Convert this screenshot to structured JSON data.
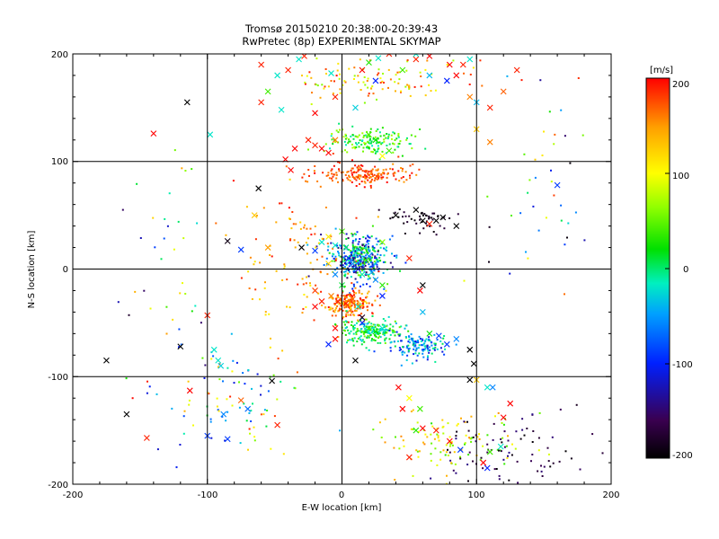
{
  "chart_data": {
    "type": "scatter",
    "title": "Tromsø 20150210 20:38:00-20:39:43",
    "subtitle": "RwPretec (8p) EXPERIMENTAL SKYMAP",
    "xlabel": "E-W location [km]",
    "ylabel": "N-S location [km]",
    "xlim": [
      -200,
      200
    ],
    "ylim": [
      -200,
      200
    ],
    "x_ticks": [
      "-200",
      "-100",
      "0",
      "100",
      "200"
    ],
    "y_ticks": [
      "-200",
      "-100",
      "0",
      "100",
      "200"
    ],
    "grid": true,
    "colorbar": {
      "label": "[m/s]",
      "range": [
        -200,
        200
      ],
      "ticks": [
        "200",
        "100",
        "0",
        "-100",
        "-200"
      ]
    },
    "series": [
      {
        "marker": "x",
        "points": [
          [
            -115,
            155
          ],
          [
            -98,
            125
          ],
          [
            -140,
            126
          ],
          [
            -65,
            50
          ],
          [
            -85,
            26
          ],
          [
            -75,
            18
          ],
          [
            -55,
            20
          ],
          [
            -120,
            -72
          ],
          [
            -175,
            -85
          ],
          [
            -95,
            -75
          ],
          [
            -92,
            -85
          ],
          [
            -90,
            -90
          ],
          [
            -100,
            -43
          ],
          [
            -113,
            -113
          ],
          [
            -100,
            -155
          ],
          [
            -88,
            -135
          ],
          [
            -85,
            -158
          ],
          [
            -75,
            -122
          ],
          [
            -70,
            -130
          ],
          [
            -52,
            -104
          ],
          [
            -48,
            -145
          ],
          [
            -145,
            -157
          ],
          [
            -30,
            20
          ],
          [
            -20,
            17
          ],
          [
            -15,
            25
          ],
          [
            -10,
            30
          ],
          [
            -5,
            22
          ],
          [
            0,
            35
          ],
          [
            3,
            20
          ],
          [
            5,
            10
          ],
          [
            8,
            5
          ],
          [
            10,
            15
          ],
          [
            12,
            0
          ],
          [
            15,
            -5
          ],
          [
            18,
            8
          ],
          [
            20,
            12
          ],
          [
            22,
            -3
          ],
          [
            25,
            -10
          ],
          [
            -10,
            5
          ],
          [
            -5,
            -5
          ],
          [
            0,
            -15
          ],
          [
            -8,
            -25
          ],
          [
            -3,
            -30
          ],
          [
            3,
            -32
          ],
          [
            8,
            -28
          ],
          [
            12,
            -35
          ],
          [
            15,
            -50
          ],
          [
            20,
            -55
          ],
          [
            25,
            -58
          ],
          [
            30,
            -55
          ],
          [
            15,
            -45
          ],
          [
            -5,
            -55
          ],
          [
            -5,
            -65
          ],
          [
            -10,
            -70
          ],
          [
            10,
            -85
          ],
          [
            -20,
            -20
          ],
          [
            -15,
            -30
          ],
          [
            -20,
            -35
          ],
          [
            30,
            25
          ],
          [
            -25,
            120
          ],
          [
            -20,
            115
          ],
          [
            -10,
            108
          ],
          [
            -15,
            112
          ],
          [
            -5,
            120
          ],
          [
            20,
            125
          ],
          [
            25,
            120
          ],
          [
            30,
            105
          ],
          [
            35,
            110
          ],
          [
            -35,
            112
          ],
          [
            -42,
            102
          ],
          [
            -38,
            92
          ],
          [
            10,
            150
          ],
          [
            25,
            175
          ],
          [
            45,
            185
          ],
          [
            65,
            180
          ],
          [
            78,
            175
          ],
          [
            85,
            180
          ],
          [
            90,
            190
          ],
          [
            -40,
            185
          ],
          [
            -55,
            165
          ],
          [
            -60,
            155
          ],
          [
            -45,
            148
          ],
          [
            -20,
            145
          ],
          [
            -5,
            160
          ],
          [
            -8,
            182
          ],
          [
            15,
            185
          ],
          [
            20,
            192
          ],
          [
            27,
            196
          ],
          [
            35,
            200
          ],
          [
            55,
            195
          ],
          [
            55,
            200
          ],
          [
            65,
            198
          ],
          [
            80,
            190
          ],
          [
            95,
            195
          ],
          [
            -62,
            75
          ],
          [
            -32,
            195
          ],
          [
            -28,
            198
          ],
          [
            40,
            50
          ],
          [
            55,
            55
          ],
          [
            60,
            45
          ],
          [
            65,
            42
          ],
          [
            70,
            45
          ],
          [
            75,
            48
          ],
          [
            85,
            40
          ],
          [
            50,
            10
          ],
          [
            60,
            -15
          ],
          [
            58,
            -20
          ],
          [
            60,
            -40
          ],
          [
            65,
            -60
          ],
          [
            72,
            -62
          ],
          [
            78,
            -70
          ],
          [
            85,
            -65
          ],
          [
            95,
            -75
          ],
          [
            98,
            -88
          ],
          [
            95,
            -103
          ],
          [
            100,
            -103
          ],
          [
            108,
            -110
          ],
          [
            112,
            -110
          ],
          [
            125,
            -125
          ],
          [
            120,
            -138
          ],
          [
            42,
            -110
          ],
          [
            50,
            -120
          ],
          [
            58,
            -130
          ],
          [
            45,
            -130
          ],
          [
            55,
            -150
          ],
          [
            60,
            -148
          ],
          [
            70,
            -150
          ],
          [
            80,
            -160
          ],
          [
            88,
            -168
          ],
          [
            110,
            -170
          ],
          [
            108,
            -185
          ],
          [
            105,
            -180
          ],
          [
            50,
            -175
          ],
          [
            30,
            -25
          ],
          [
            30,
            -15
          ],
          [
            -48,
            180
          ],
          [
            -60,
            190
          ],
          [
            130,
            185
          ],
          [
            120,
            165
          ],
          [
            110,
            150
          ],
          [
            100,
            155
          ],
          [
            95,
            160
          ],
          [
            100,
            130
          ],
          [
            110,
            118
          ],
          [
            160,
            78
          ],
          [
            118,
            -165
          ],
          [
            -160,
            -135
          ]
        ],
        "values": [
          -200,
          -20,
          200,
          130,
          -190,
          -90,
          150,
          -200,
          -200,
          -20,
          -20,
          -30,
          190,
          200,
          -90,
          -60,
          -90,
          170,
          -70,
          -200,
          190,
          190,
          -200,
          -90,
          -20,
          110,
          -20,
          40,
          0,
          -100,
          -60,
          -30,
          -110,
          -10,
          30,
          -60,
          -40,
          -60,
          120,
          -60,
          10,
          160,
          190,
          190,
          170,
          -20,
          -100,
          40,
          20,
          -20,
          -180,
          200,
          200,
          -100,
          -200,
          180,
          190,
          200,
          60,
          190,
          190,
          200,
          200,
          160,
          40,
          20,
          100,
          40,
          200,
          200,
          200,
          -30,
          -100,
          40,
          -40,
          -100,
          200,
          190,
          190,
          40,
          190,
          -20,
          200,
          190,
          -20,
          200,
          30,
          -20,
          190,
          190,
          -20,
          200,
          200,
          -20,
          -200,
          -20,
          190,
          -200,
          -200,
          -200,
          190,
          -200,
          -200,
          -200,
          190,
          -200,
          200,
          -40,
          20,
          -90,
          -90,
          -60,
          -200,
          -200,
          -200,
          130,
          -20,
          -60,
          200,
          200,
          200,
          100,
          40,
          200,
          30,
          200,
          190,
          200,
          -90,
          40,
          -100,
          200,
          190,
          -100,
          30,
          -20,
          190,
          190,
          170,
          190,
          -40,
          160,
          130,
          160,
          -90,
          -20,
          -200
        ]
      },
      {
        "marker": "dot",
        "clusters": [
          {
            "center": [
              12,
              10
            ],
            "spread": [
              18,
              18
            ],
            "count": 380,
            "value_range": [
              -160,
              60
            ]
          },
          {
            "center": [
              5,
              -32
            ],
            "spread": [
              14,
              10
            ],
            "count": 200,
            "value_range": [
              120,
              200
            ]
          },
          {
            "center": [
              22,
              -58
            ],
            "spread": [
              20,
              9
            ],
            "count": 210,
            "value_range": [
              -40,
              60
            ]
          },
          {
            "center": [
              58,
              -72
            ],
            "spread": [
              18,
              10
            ],
            "count": 130,
            "value_range": [
              -120,
              10
            ]
          },
          {
            "center": [
              18,
              88
            ],
            "spread": [
              30,
              8
            ],
            "count": 180,
            "value_range": [
              150,
              200
            ]
          },
          {
            "center": [
              20,
              118
            ],
            "spread": [
              25,
              10
            ],
            "count": 150,
            "value_range": [
              -20,
              80
            ]
          },
          {
            "center": [
              30,
              175
            ],
            "spread": [
              55,
              18
            ],
            "count": 110,
            "value_range": [
              60,
              200
            ]
          },
          {
            "center": [
              -30,
              5
            ],
            "spread": [
              40,
              60
            ],
            "count": 110,
            "value_range": [
              100,
              200
            ]
          },
          {
            "center": [
              80,
              -160
            ],
            "spread": [
              45,
              25
            ],
            "count": 110,
            "value_range": [
              30,
              160
            ]
          },
          {
            "center": [
              120,
              -170
            ],
            "spread": [
              45,
              25
            ],
            "count": 80,
            "value_range": [
              -200,
              -140
            ]
          },
          {
            "center": [
              -80,
              -120
            ],
            "spread": [
              45,
              40
            ],
            "count": 90,
            "value_range": [
              -120,
              200
            ]
          },
          {
            "center": [
              60,
              45
            ],
            "spread": [
              25,
              10
            ],
            "count": 50,
            "value_range": [
              -200,
              -170
            ]
          },
          {
            "center": [
              -130,
              0
            ],
            "spread": [
              30,
              90
            ],
            "count": 40,
            "value_range": [
              -200,
              200
            ]
          },
          {
            "center": [
              150,
              60
            ],
            "spread": [
              40,
              100
            ],
            "count": 40,
            "value_range": [
              -200,
              200
            ]
          }
        ]
      }
    ]
  },
  "colors": {
    "gradient": [
      "#000000",
      "#3a0050",
      "#0020ff",
      "#00a0ff",
      "#00f0c0",
      "#00e000",
      "#90ff00",
      "#ffff00",
      "#ffa000",
      "#ff0000"
    ],
    "axis": "#000000",
    "grid": "#000000"
  }
}
